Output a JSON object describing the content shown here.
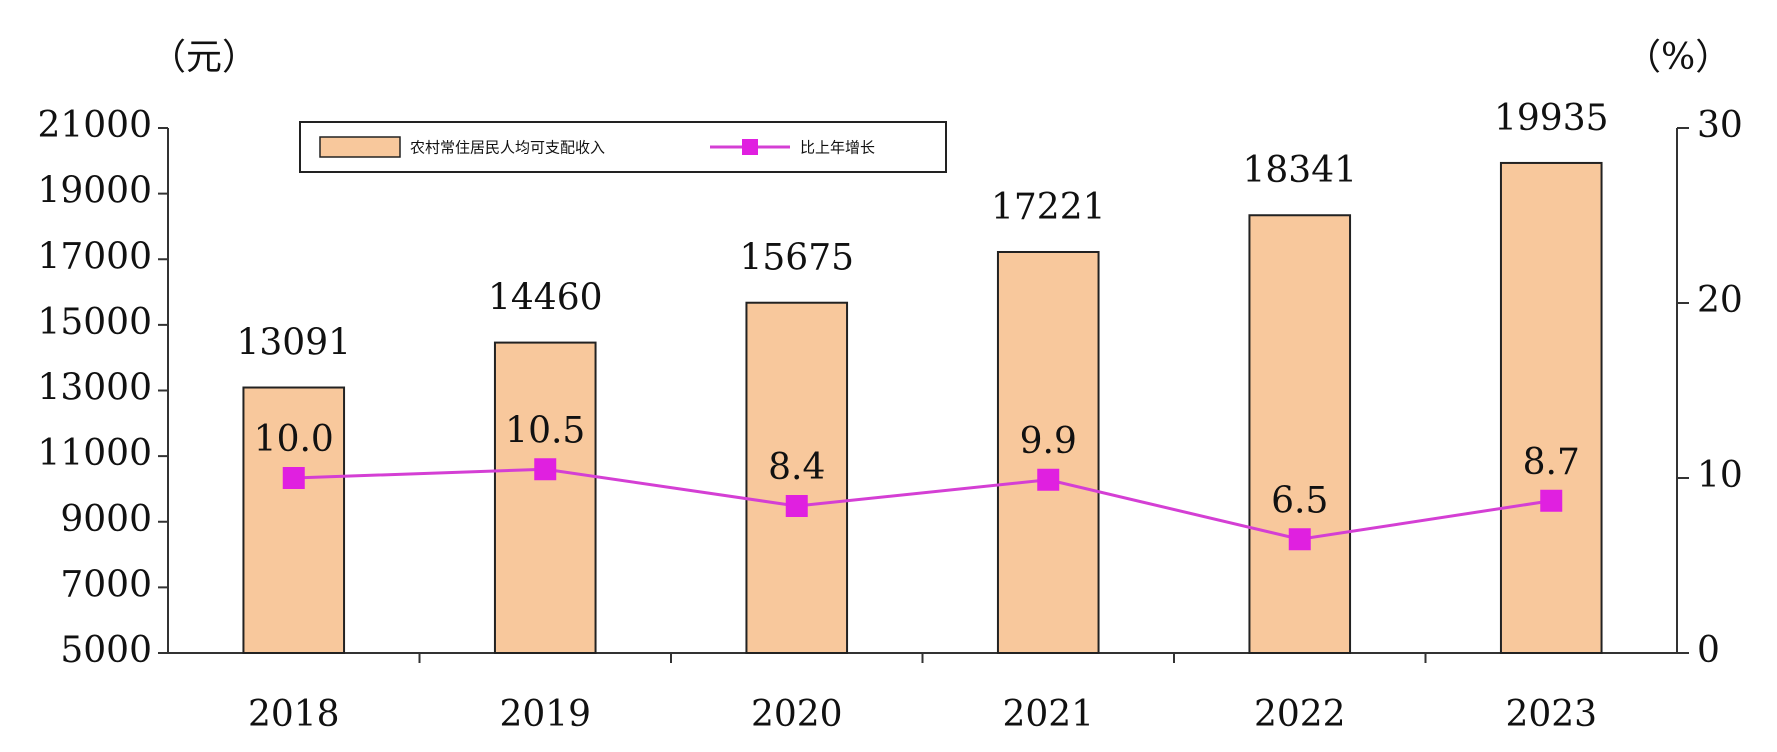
{
  "chart_data": {
    "type": "combo",
    "y_unit": "（元）",
    "y2_unit": "（%）",
    "categories": [
      "2018",
      "2019",
      "2020",
      "2021",
      "2022",
      "2023"
    ],
    "series": [
      {
        "name": "农村常住居民人均可支配收入",
        "type": "bar",
        "color": "#f8c89c",
        "values": [
          13091,
          14460,
          15675,
          17221,
          18341,
          19935
        ]
      },
      {
        "name": "比上年增长",
        "type": "line",
        "axis": "y2",
        "color": "#d43fd4",
        "values": [
          10.0,
          10.5,
          8.4,
          9.9,
          6.5,
          8.7
        ],
        "value_labels": [
          "10.0",
          "10.5",
          "8.4",
          "9.9",
          "6.5",
          "8.7"
        ]
      }
    ],
    "ylim": [
      5000,
      21000
    ],
    "yticks": [
      5000,
      7000,
      9000,
      11000,
      13000,
      15000,
      17000,
      19000,
      21000
    ],
    "y2lim": [
      0,
      30
    ],
    "y2ticks": [
      0,
      10,
      20,
      30
    ]
  }
}
